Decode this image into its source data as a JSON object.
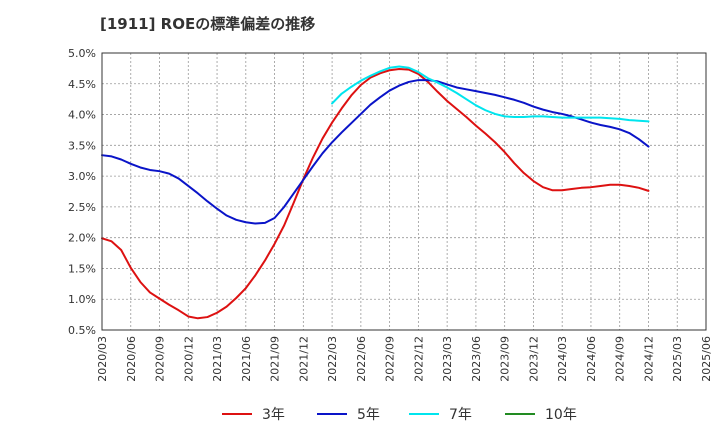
{
  "chart_data": {
    "type": "line",
    "title": "[1911]  ROEの標準偏差の推移",
    "xlabel": "",
    "ylabel": "",
    "ylim": [
      0.5,
      5.0
    ],
    "y_ticks": [
      0.5,
      1.0,
      1.5,
      2.0,
      2.5,
      3.0,
      3.5,
      4.0,
      4.5,
      5.0
    ],
    "y_tick_labels": [
      "0.5%",
      "1.0%",
      "1.5%",
      "2.0%",
      "2.5%",
      "3.0%",
      "3.5%",
      "4.0%",
      "4.5%",
      "5.0%"
    ],
    "x_tick_labels": [
      "2020/03",
      "2020/06",
      "2020/09",
      "2020/12",
      "2021/03",
      "2021/06",
      "2021/09",
      "2021/12",
      "2022/03",
      "2022/06",
      "2022/09",
      "2022/12",
      "2023/03",
      "2023/06",
      "2023/09",
      "2023/12",
      "2024/03",
      "2024/06",
      "2024/09",
      "2024/12",
      "2025/03",
      "2025/06"
    ],
    "grid": true,
    "legend_position": "bottom",
    "x_start_month_index": 0,
    "series": [
      {
        "name": "3年",
        "color": "#dd1111",
        "start_index": 0,
        "values": [
          1.99,
          1.94,
          1.8,
          1.51,
          1.28,
          1.11,
          1.01,
          0.91,
          0.82,
          0.72,
          0.69,
          0.71,
          0.78,
          0.88,
          1.02,
          1.18,
          1.39,
          1.63,
          1.9,
          2.2,
          2.57,
          2.95,
          3.3,
          3.61,
          3.87,
          4.1,
          4.31,
          4.48,
          4.6,
          4.67,
          4.72,
          4.74,
          4.73,
          4.66,
          4.53,
          4.37,
          4.22,
          4.09,
          3.96,
          3.82,
          3.69,
          3.55,
          3.39,
          3.21,
          3.05,
          2.92,
          2.82,
          2.77,
          2.77,
          2.79,
          2.81,
          2.82,
          2.84,
          2.86,
          2.86,
          2.84,
          2.81,
          2.76
        ]
      },
      {
        "name": "5年",
        "color": "#0a14c8",
        "start_index": 0,
        "values": [
          3.34,
          3.32,
          3.27,
          3.2,
          3.14,
          3.1,
          3.08,
          3.04,
          2.96,
          2.84,
          2.72,
          2.59,
          2.47,
          2.36,
          2.29,
          2.25,
          2.23,
          2.24,
          2.32,
          2.5,
          2.72,
          2.94,
          3.16,
          3.37,
          3.55,
          3.71,
          3.86,
          4.01,
          4.16,
          4.28,
          4.39,
          4.47,
          4.53,
          4.56,
          4.56,
          4.54,
          4.49,
          4.44,
          4.41,
          4.38,
          4.35,
          4.32,
          4.28,
          4.24,
          4.19,
          4.13,
          4.08,
          4.04,
          4.01,
          3.97,
          3.92,
          3.87,
          3.83,
          3.8,
          3.76,
          3.7,
          3.6,
          3.48
        ]
      },
      {
        "name": "7年",
        "color": "#00e5ee",
        "start_index": 24,
        "values": [
          4.18,
          4.34,
          4.45,
          4.55,
          4.63,
          4.7,
          4.76,
          4.78,
          4.76,
          4.69,
          4.59,
          4.52,
          4.44,
          4.35,
          4.25,
          4.15,
          4.07,
          4.01,
          3.97,
          3.96,
          3.96,
          3.97,
          3.97,
          3.96,
          3.95,
          3.95,
          3.95,
          3.95,
          3.95,
          3.94,
          3.93,
          3.91,
          3.9,
          3.89
        ]
      },
      {
        "name": "10年",
        "color": "#228b22",
        "start_index": 0,
        "values": []
      }
    ]
  }
}
